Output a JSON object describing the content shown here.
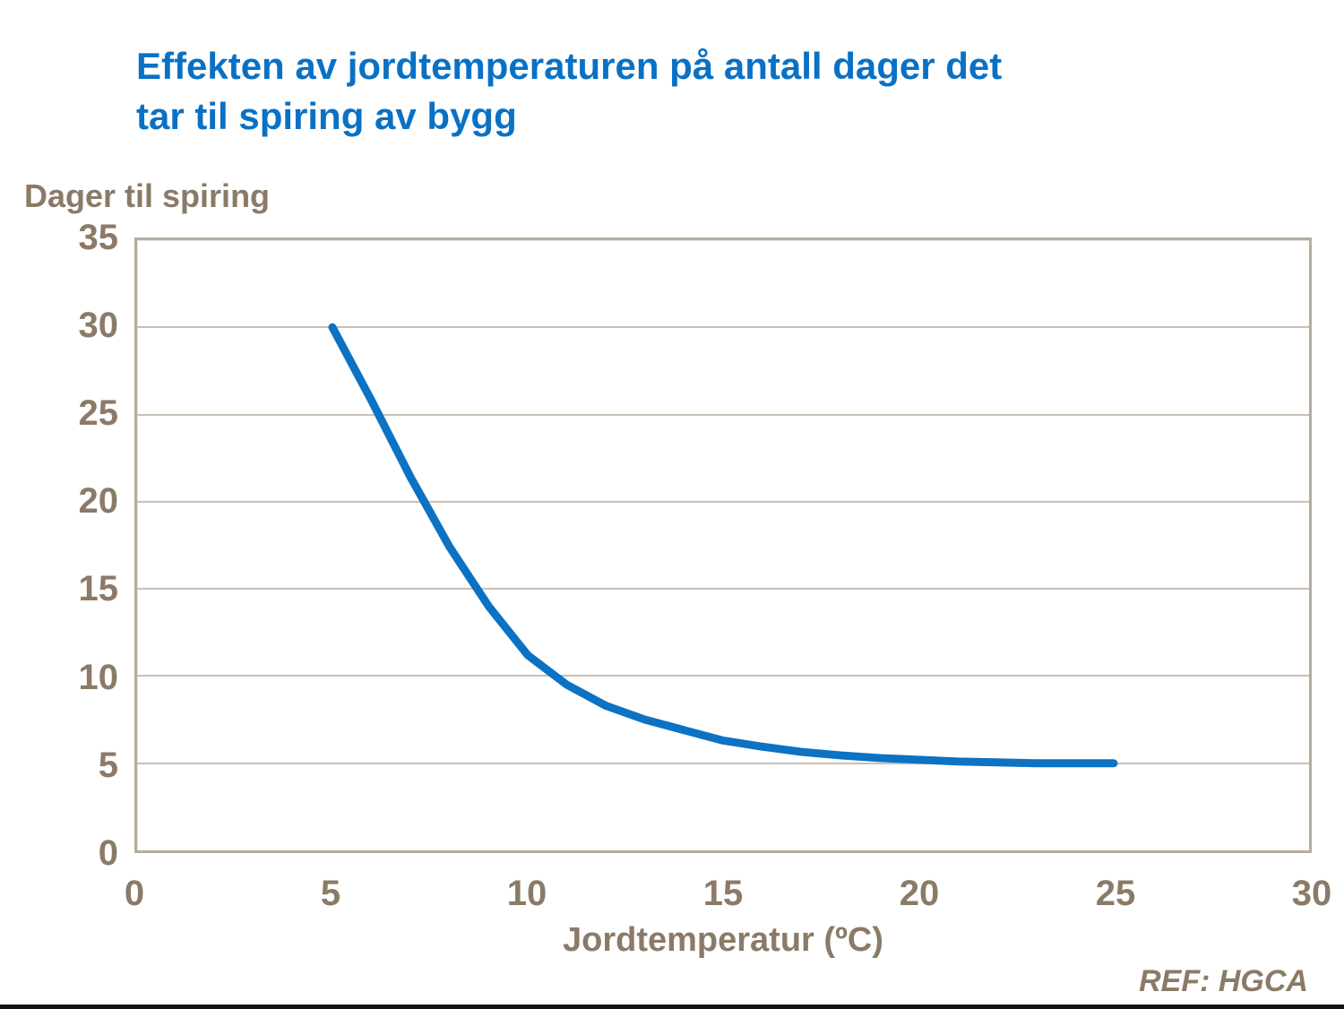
{
  "slide": {
    "title_line1": "Effekten av jordtemperaturen på antall dager det",
    "title_line2": "tar til spiring av bygg",
    "ref_note": "REF: HGCA"
  },
  "axes": {
    "y_title": "Dager til spiring",
    "x_title": "Jordtemperatur (ºC)",
    "y_ticks": [
      "35",
      "30",
      "25",
      "20",
      "15",
      "10",
      "5",
      "0"
    ],
    "x_ticks": [
      "0",
      "5",
      "10",
      "15",
      "20",
      "25",
      "30"
    ]
  },
  "colors": {
    "title_blue": "#0971c5",
    "line_blue": "#0b72c4",
    "axis_text_brown": "#8a7a67",
    "gridline": "#c9c0b4",
    "plot_border": "#b6ac9f",
    "footer_bar": "#141417"
  },
  "chart_data": {
    "type": "line",
    "title": "Effekten av jordtemperaturen på antall dager det tar til spiring av bygg",
    "xlabel": "Jordtemperatur (ºC)",
    "ylabel": "Dager til spiring",
    "xlim": [
      0,
      30
    ],
    "ylim": [
      0,
      35
    ],
    "x_tick_values": [
      0,
      5,
      10,
      15,
      20,
      25,
      30
    ],
    "y_tick_values": [
      0,
      5,
      10,
      15,
      20,
      25,
      30,
      35
    ],
    "grid": "horizontal",
    "legend_position": "none",
    "annotation": "REF: HGCA",
    "series": [
      {
        "name": "Dager til spiring av bygg",
        "x": [
          5,
          6,
          7,
          8,
          9,
          10,
          11,
          12,
          13,
          14,
          15,
          16,
          17,
          18,
          19,
          20,
          21,
          22,
          23,
          24,
          25
        ],
        "y": [
          30,
          25.8,
          21.4,
          17.4,
          14.0,
          11.2,
          9.5,
          8.3,
          7.5,
          6.9,
          6.3,
          5.95,
          5.65,
          5.45,
          5.3,
          5.2,
          5.1,
          5.05,
          5.0,
          5.0,
          5.0
        ]
      }
    ]
  }
}
